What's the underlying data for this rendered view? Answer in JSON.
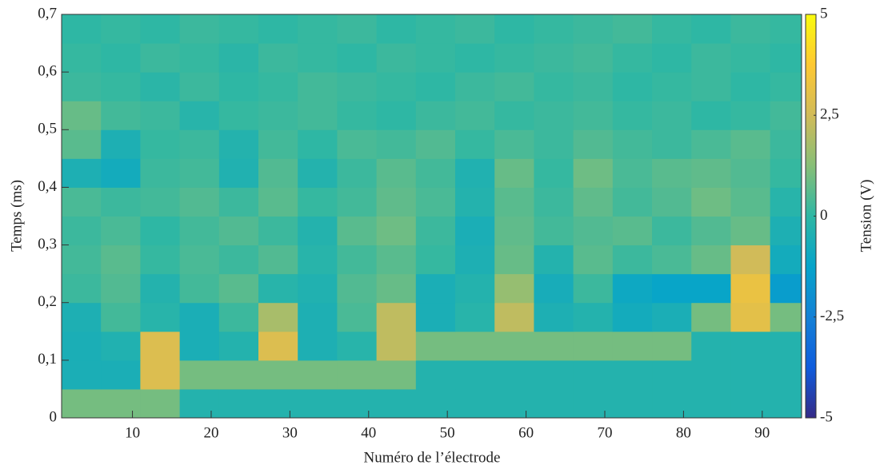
{
  "chart_data": {
    "type": "heatmap",
    "xlabel": "Numéro de l’électrode",
    "ylabel": "Temps (ms)",
    "colorbar_label": "Tension (V)",
    "x": [
      3.5,
      8.5,
      13.5,
      18.5,
      23.5,
      28.5,
      33.5,
      38.5,
      43.5,
      48.5,
      53.5,
      58.5,
      63.5,
      68.5,
      73.5,
      78.5,
      83.5,
      88.5,
      93.5
    ],
    "y": [
      0.025,
      0.075,
      0.125,
      0.175,
      0.225,
      0.275,
      0.325,
      0.375,
      0.425,
      0.475,
      0.525,
      0.575,
      0.625,
      0.675
    ],
    "values": [
      [
        1.0,
        1.0,
        1.0,
        -0.3,
        -0.3,
        -0.3,
        -0.3,
        -0.3,
        -0.3,
        -0.3,
        -0.3,
        -0.3,
        -0.3,
        -0.3,
        -0.3,
        -0.3,
        -0.3,
        -0.3,
        -0.3
      ],
      [
        -0.6,
        -0.6,
        2.8,
        1.0,
        1.0,
        1.0,
        1.0,
        1.0,
        1.0,
        -0.3,
        -0.3,
        -0.3,
        -0.3,
        -0.3,
        -0.3,
        -0.3,
        -0.3,
        -0.3,
        -0.3
      ],
      [
        -0.6,
        -0.4,
        2.8,
        -0.6,
        -0.3,
        2.8,
        -0.5,
        -0.2,
        2.2,
        1.0,
        1.0,
        1.0,
        1.0,
        1.0,
        1.0,
        1.0,
        -0.3,
        -0.3,
        -0.3
      ],
      [
        -0.5,
        0.3,
        -0.2,
        -0.6,
        0.2,
        1.8,
        -0.5,
        0.4,
        2.2,
        -0.6,
        -0.2,
        2.2,
        -0.5,
        -0.3,
        -0.8,
        -0.6,
        1.0,
        3.0,
        1.0
      ],
      [
        0.2,
        0.5,
        -0.3,
        0.3,
        0.6,
        -0.2,
        -0.4,
        0.5,
        0.8,
        -0.6,
        -0.3,
        1.5,
        -0.7,
        0.2,
        -1.0,
        -1.2,
        -1.2,
        3.2,
        -1.5
      ],
      [
        0.3,
        0.6,
        0.1,
        0.4,
        0.2,
        0.5,
        -0.2,
        0.3,
        0.6,
        0.1,
        -0.5,
        0.8,
        -0.3,
        0.6,
        0.2,
        0.4,
        0.8,
        2.5,
        -0.8
      ],
      [
        0.2,
        0.4,
        0.0,
        0.3,
        0.5,
        0.2,
        -0.3,
        0.6,
        0.9,
        0.2,
        -0.6,
        0.7,
        0.3,
        0.5,
        0.6,
        0.2,
        0.5,
        0.8,
        -0.5
      ],
      [
        0.4,
        0.2,
        0.3,
        0.5,
        0.2,
        0.6,
        0.1,
        0.3,
        0.7,
        0.4,
        -0.3,
        0.6,
        0.2,
        0.7,
        0.3,
        0.5,
        0.9,
        0.6,
        -0.2
      ],
      [
        -0.5,
        -0.8,
        0.2,
        0.3,
        -0.4,
        0.5,
        -0.3,
        0.2,
        0.6,
        0.3,
        -0.4,
        0.8,
        0.1,
        0.9,
        0.4,
        0.6,
        0.7,
        0.5,
        0.1
      ],
      [
        0.6,
        -0.5,
        0.1,
        0.2,
        -0.3,
        0.3,
        0.0,
        0.4,
        0.3,
        0.5,
        0.1,
        0.4,
        0.2,
        0.5,
        0.3,
        0.2,
        0.4,
        0.6,
        0.2
      ],
      [
        0.8,
        0.3,
        0.2,
        -0.2,
        0.1,
        0.2,
        0.3,
        0.1,
        0.0,
        0.2,
        0.3,
        0.1,
        0.2,
        0.3,
        0.1,
        0.2,
        0.0,
        0.1,
        0.3
      ],
      [
        0.2,
        0.1,
        -0.1,
        0.2,
        0.0,
        0.1,
        0.3,
        0.2,
        0.1,
        0.0,
        0.2,
        0.3,
        0.1,
        0.2,
        0.0,
        0.1,
        0.2,
        0.0,
        0.1
      ],
      [
        0.1,
        0.0,
        0.2,
        0.1,
        -0.1,
        0.2,
        0.1,
        0.0,
        0.2,
        0.1,
        0.0,
        0.1,
        0.2,
        0.3,
        0.1,
        0.0,
        0.2,
        0.1,
        0.0
      ],
      [
        0.0,
        0.1,
        0.0,
        0.2,
        0.1,
        0.0,
        0.1,
        0.2,
        0.0,
        0.1,
        0.2,
        0.0,
        0.1,
        0.2,
        0.3,
        0.1,
        0.0,
        0.2,
        0.1
      ]
    ],
    "xlim": [
      1,
      95
    ],
    "ylim": [
      0,
      0.7
    ],
    "xticks": [
      10,
      20,
      30,
      40,
      50,
      60,
      70,
      80,
      90
    ],
    "yticks": [
      0,
      {
        "value": 0.1,
        "label": "0,1"
      },
      {
        "value": 0.2,
        "label": "0,2"
      },
      {
        "value": 0.3,
        "label": "0,3"
      },
      {
        "value": 0.4,
        "label": "0,4"
      },
      {
        "value": 0.5,
        "label": "0,5"
      },
      {
        "value": 0.6,
        "label": "0,6"
      },
      {
        "value": 0.7,
        "label": "0,7"
      }
    ],
    "clim": [
      -5,
      5
    ],
    "cticks": [
      5,
      {
        "value": 2.5,
        "label": "2,5"
      },
      0,
      {
        "value": -2.5,
        "label": "-2,5"
      },
      -5
    ],
    "colormap": [
      "#352a87",
      "#0f5cdd",
      "#1481d6",
      "#06a4ca",
      "#2eb7a4",
      "#87bf77",
      "#d1bb59",
      "#fec832",
      "#f9fb0e"
    ]
  }
}
